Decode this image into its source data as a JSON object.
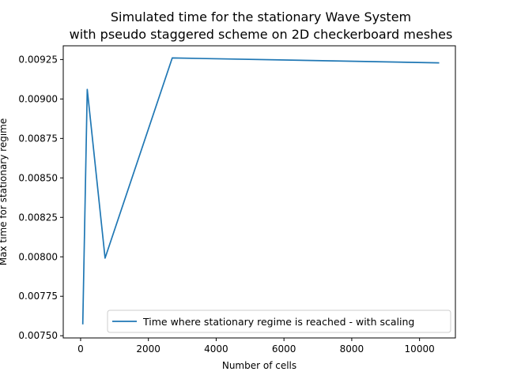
{
  "chart_data": {
    "type": "line",
    "title_lines": [
      "Simulated time for the stationary Wave System",
      "with pseudo staggered scheme on 2D checkerboard meshes"
    ],
    "xlabel": "Number of cells",
    "ylabel": "Max time for stationary regime",
    "xlim": [
      -512,
      11058
    ],
    "ylim": [
      0.007486,
      0.009337
    ],
    "xticks": [
      0,
      2000,
      4000,
      6000,
      8000,
      10000
    ],
    "xtick_labels": [
      "0",
      "2000",
      "4000",
      "6000",
      "8000",
      "10000"
    ],
    "yticks": [
      0.0075,
      0.00775,
      0.008,
      0.00825,
      0.0085,
      0.00875,
      0.009,
      0.00925
    ],
    "ytick_labels": [
      "0.00750",
      "0.00775",
      "0.00800",
      "0.00825",
      "0.00850",
      "0.00875",
      "0.00900",
      "0.00925"
    ],
    "grid": false,
    "legend_position": "lower-right",
    "series": [
      {
        "name": "Time where stationary regime is reached - with scaling",
        "color": "#1f77b4",
        "x": [
          64,
          196,
          722,
          2704,
          10580
        ],
        "y": [
          0.007572,
          0.009061,
          0.007992,
          0.00926,
          0.009229
        ]
      }
    ]
  }
}
